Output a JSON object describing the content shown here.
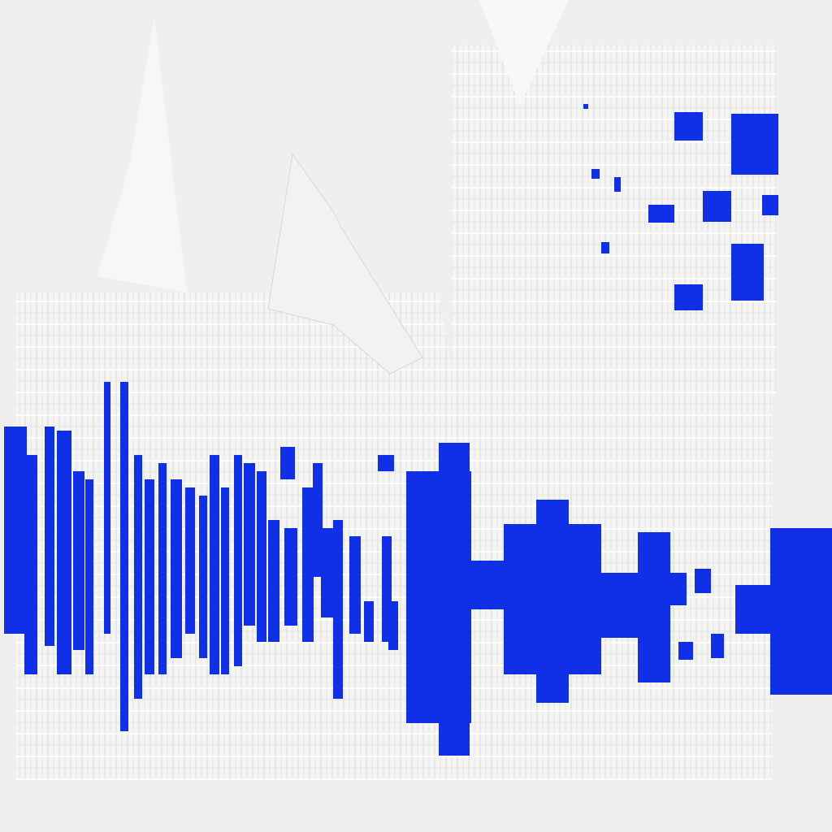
{
  "colors": {
    "background": "#efefed",
    "fabric_white": "#f6f6f4",
    "fabric_shadow": "#d9d9d5",
    "fabric_line": "#ffffff",
    "pattern_blue": "#1030e8"
  },
  "texture": {
    "name": "woven-fabric-uv-texture",
    "pattern_motifs": [
      "left-vertical-stripe-band",
      "center-stepped-cross-motif",
      "top-right-checker-motif"
    ]
  }
}
